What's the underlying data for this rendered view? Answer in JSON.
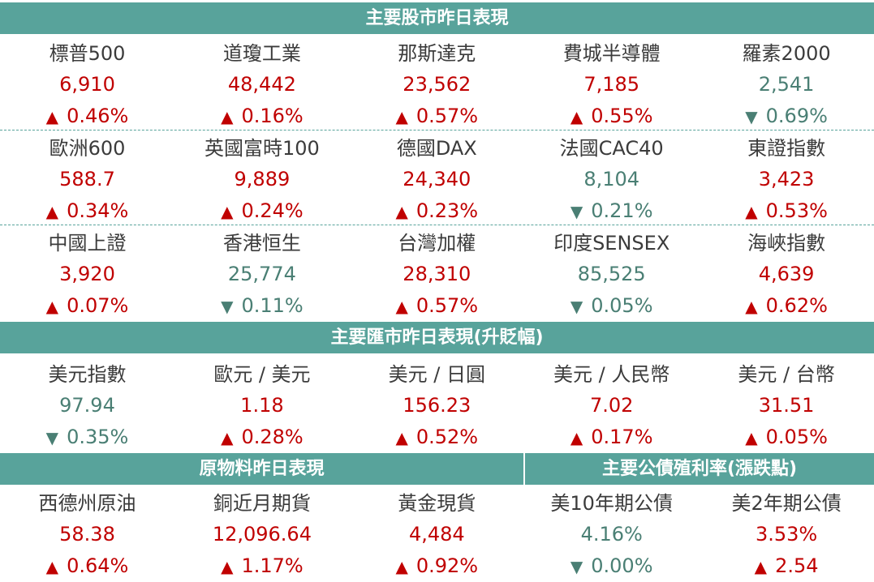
{
  "colors": {
    "header_bg": "#58a39b",
    "up": "#c00000",
    "down": "#4a7f74"
  },
  "stocks": {
    "title": "主要股市昨日表現",
    "rows": [
      [
        {
          "name": "標普500",
          "value": "6,910",
          "change": "0.46%",
          "dir": "up"
        },
        {
          "name": "道瓊工業",
          "value": "48,442",
          "change": "0.16%",
          "dir": "up"
        },
        {
          "name": "那斯達克",
          "value": "23,562",
          "change": "0.57%",
          "dir": "up"
        },
        {
          "name": "費城半導體",
          "value": "7,185",
          "change": "0.55%",
          "dir": "up"
        },
        {
          "name": "羅素2000",
          "value": "2,541",
          "change": "0.69%",
          "dir": "down"
        }
      ],
      [
        {
          "name": "歐洲600",
          "value": "588.7",
          "change": "0.34%",
          "dir": "up"
        },
        {
          "name": "英國富時100",
          "value": "9,889",
          "change": "0.24%",
          "dir": "up"
        },
        {
          "name": "德國DAX",
          "value": "24,340",
          "change": "0.23%",
          "dir": "up"
        },
        {
          "name": "法國CAC40",
          "value": "8,104",
          "change": "0.21%",
          "dir": "down"
        },
        {
          "name": "東證指數",
          "value": "3,423",
          "change": "0.53%",
          "dir": "up"
        }
      ],
      [
        {
          "name": "中國上證",
          "value": "3,920",
          "change": "0.07%",
          "dir": "up"
        },
        {
          "name": "香港恒生",
          "value": "25,774",
          "change": "0.11%",
          "dir": "down"
        },
        {
          "name": "台灣加權",
          "value": "28,310",
          "change": "0.57%",
          "dir": "up"
        },
        {
          "name": "印度SENSEX",
          "value": "85,525",
          "change": "0.05%",
          "dir": "down"
        },
        {
          "name": "海峽指數",
          "value": "4,639",
          "change": "0.62%",
          "dir": "up"
        }
      ]
    ]
  },
  "fx": {
    "title": "主要匯市昨日表現(升貶幅)",
    "row": [
      {
        "name": "美元指數",
        "value": "97.94",
        "change": "0.35%",
        "dir": "down"
      },
      {
        "name": "歐元 / 美元",
        "value": "1.18",
        "change": "0.28%",
        "dir": "up"
      },
      {
        "name": "美元 / 日圓",
        "value": "156.23",
        "change": "0.52%",
        "dir": "up"
      },
      {
        "name": "美元 / 人民幣",
        "value": "7.02",
        "change": "0.17%",
        "dir": "up"
      },
      {
        "name": "美元 / 台幣",
        "value": "31.51",
        "change": "0.05%",
        "dir": "up"
      }
    ]
  },
  "commodities": {
    "title": "原物料昨日表現",
    "row": [
      {
        "name": "西德州原油",
        "value": "58.38",
        "change": "0.64%",
        "dir": "up"
      },
      {
        "name": "銅近月期貨",
        "value": "12,096.64",
        "change": "1.17%",
        "dir": "up"
      },
      {
        "name": "黃金現貨",
        "value": "4,484",
        "change": "0.92%",
        "dir": "up"
      }
    ]
  },
  "bonds": {
    "title": "主要公債殖利率(漲跌點)",
    "row": [
      {
        "name": "美10年期公債",
        "value": "4.16%",
        "change": "0.00%",
        "dir": "down"
      },
      {
        "name": "美2年期公債",
        "value": "3.53%",
        "change": "2.54",
        "dir": "up"
      }
    ]
  }
}
